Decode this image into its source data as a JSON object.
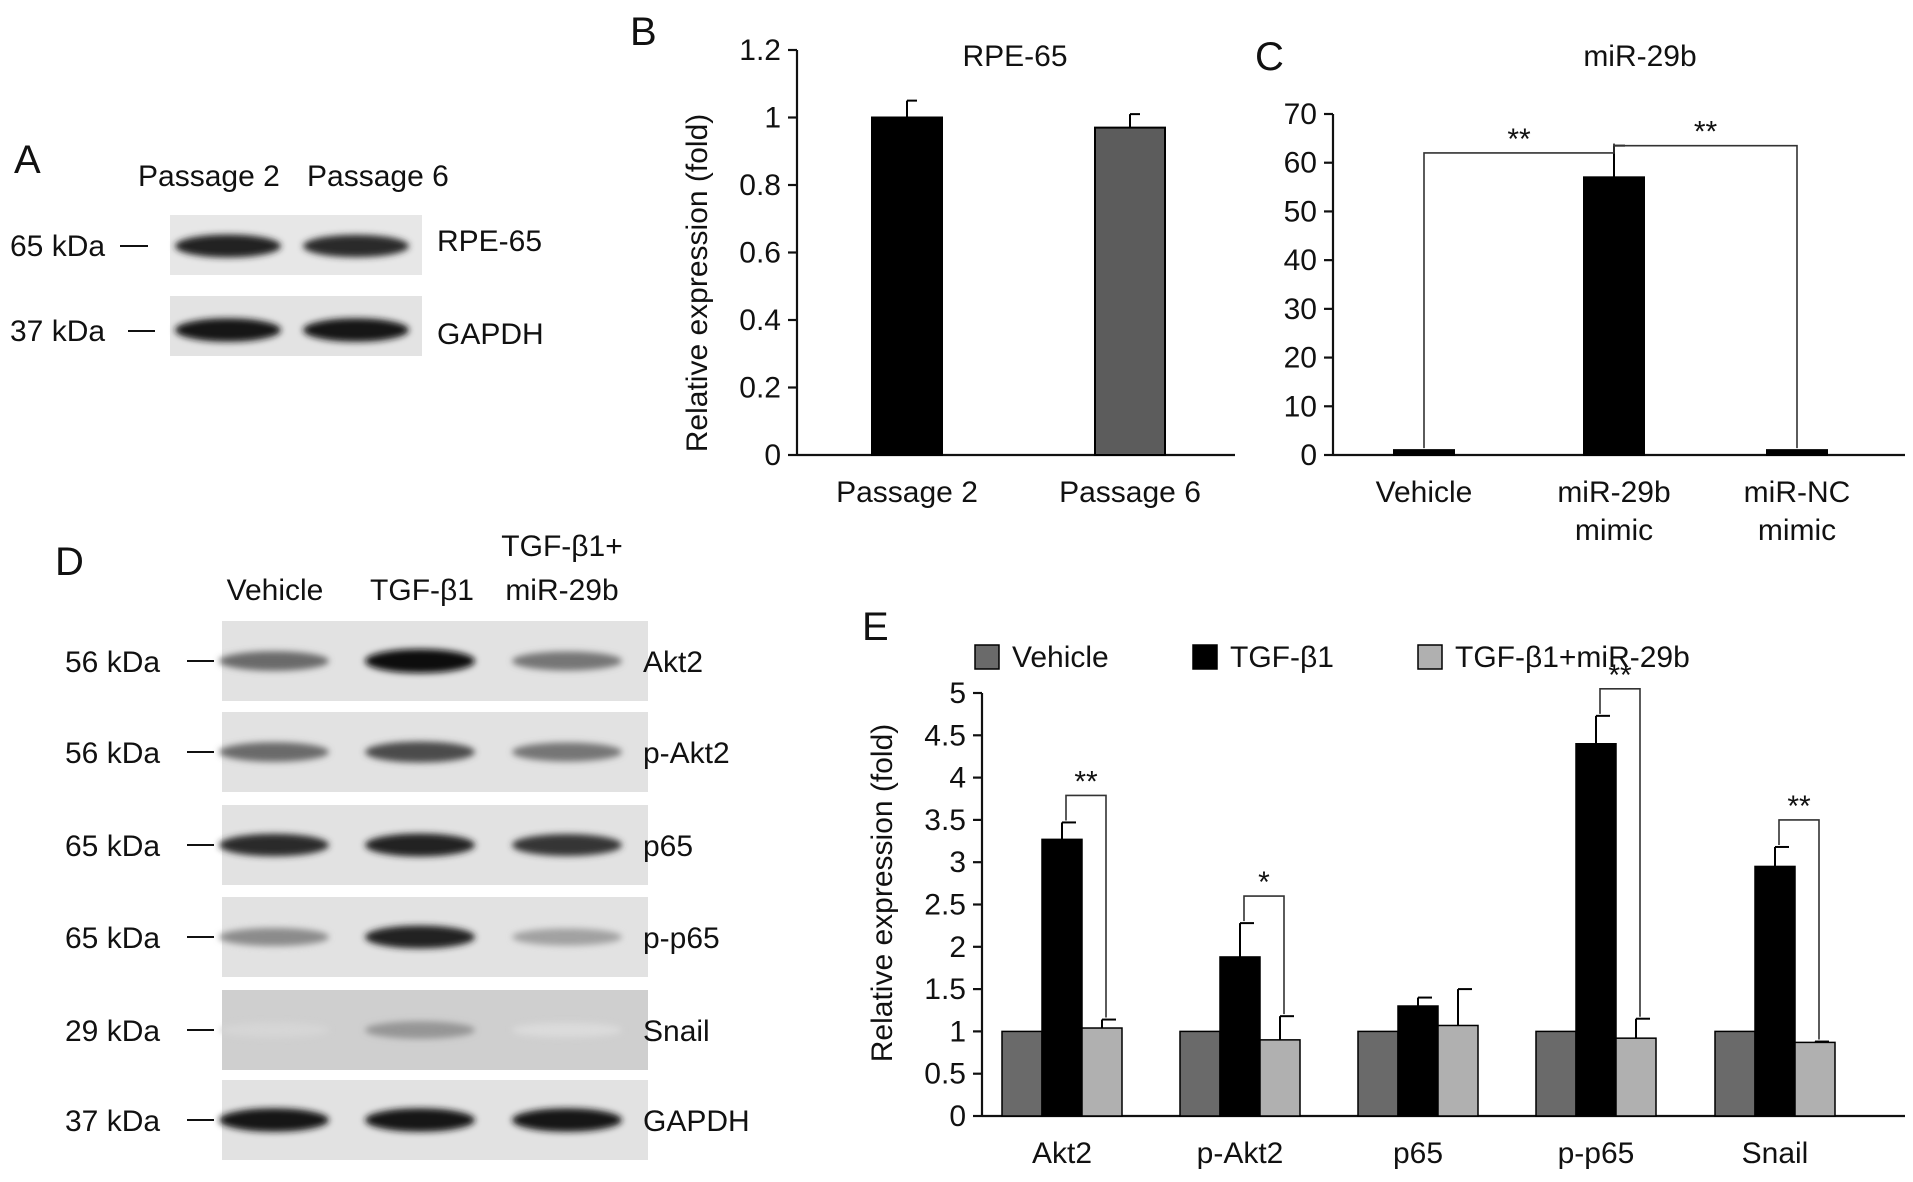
{
  "panels": {
    "A": {
      "letter": "A",
      "lanes": [
        "Passage 2",
        "Passage 6"
      ],
      "rows": [
        {
          "marker": "65 kDa",
          "protein": "RPE-65",
          "intensity": [
            0.9,
            0.85
          ]
        },
        {
          "marker": "37 kDa",
          "protein": "GAPDH",
          "intensity": [
            0.95,
            0.95
          ]
        }
      ]
    },
    "B": {
      "letter": "B"
    },
    "C": {
      "letter": "C"
    },
    "D": {
      "letter": "D",
      "lanes": [
        "Vehicle",
        "TGF-β1",
        "TGF-β1+",
        "miR-29b"
      ],
      "rows": [
        {
          "marker": "56 kDa",
          "protein": "Akt2",
          "intensity": [
            0.55,
            1.0,
            0.5
          ]
        },
        {
          "marker": "56 kDa",
          "protein": "p-Akt2",
          "intensity": [
            0.55,
            0.7,
            0.5
          ]
        },
        {
          "marker": "65 kDa",
          "protein": "p65",
          "intensity": [
            0.85,
            0.9,
            0.8
          ]
        },
        {
          "marker": "65 kDa",
          "protein": "p-p65",
          "intensity": [
            0.4,
            0.9,
            0.3
          ]
        },
        {
          "marker": "29 kDa",
          "protein": "Snail",
          "intensity": [
            0.05,
            0.35,
            0.03
          ]
        },
        {
          "marker": "37 kDa",
          "protein": "GAPDH",
          "intensity": [
            0.95,
            0.95,
            0.95
          ]
        }
      ]
    },
    "E": {
      "letter": "E"
    }
  },
  "chart_data": [
    {
      "panel": "B",
      "type": "bar",
      "title": "RPE-65",
      "ylabel": "Relative expression (fold)",
      "categories": [
        "Passage 2",
        "Passage 6"
      ],
      "values": [
        1.0,
        0.97
      ],
      "errors": [
        0.05,
        0.04
      ],
      "bar_colors": [
        "#000000",
        "#5c5c5c"
      ],
      "ylim": [
        0,
        1.2
      ],
      "yticks": [
        "0",
        "0.2",
        "0.4",
        "0.6",
        "0.8",
        "1",
        "1.2"
      ]
    },
    {
      "panel": "C",
      "type": "bar",
      "title": "miR-29b",
      "categories": [
        "Vehicle",
        "miR-29b",
        "miR-NC"
      ],
      "categories_line2": [
        "",
        "mimic",
        "mimic"
      ],
      "values": [
        1,
        57,
        1
      ],
      "errors": [
        0,
        6.5,
        0
      ],
      "bar_colors": [
        "#000000",
        "#000000",
        "#000000"
      ],
      "ylim": [
        0,
        70
      ],
      "yticks": [
        "0",
        "10",
        "20",
        "30",
        "40",
        "50",
        "60",
        "70"
      ],
      "significance": [
        {
          "from": 0,
          "to": 1,
          "label": "**"
        },
        {
          "from": 1,
          "to": 2,
          "label": "**"
        }
      ]
    },
    {
      "panel": "E",
      "type": "bar",
      "ylabel": "Relative expression (fold)",
      "categories": [
        "Akt2",
        "p-Akt2",
        "p65",
        "p-p65",
        "Snail"
      ],
      "series": [
        {
          "name": "Vehicle",
          "color": "#6a6a6a",
          "values": [
            1,
            1,
            1,
            1,
            1
          ],
          "errors": [
            0,
            0,
            0,
            0,
            0
          ]
        },
        {
          "name": "TGF-β1",
          "color": "#000000",
          "values": [
            3.27,
            1.88,
            1.3,
            4.4,
            2.95
          ],
          "errors": [
            0.2,
            0.4,
            0.1,
            0.33,
            0.23
          ]
        },
        {
          "name": "TGF-β1+miR-29b",
          "color": "#b0b0b0",
          "values": [
            1.04,
            0.9,
            1.07,
            0.92,
            0.87
          ],
          "errors": [
            0.1,
            0.28,
            0.43,
            0.23,
            0.01
          ]
        }
      ],
      "ylim": [
        0,
        5
      ],
      "yticks": [
        "0",
        "0.5",
        "1",
        "1.5",
        "2",
        "2.5",
        "3",
        "3.5",
        "4",
        "4.5",
        "5"
      ],
      "legend_position": "top",
      "significance": [
        {
          "category": 0,
          "label": "**"
        },
        {
          "category": 1,
          "label": "*"
        },
        {
          "category": 3,
          "label": "**"
        },
        {
          "category": 4,
          "label": "**"
        }
      ]
    }
  ]
}
